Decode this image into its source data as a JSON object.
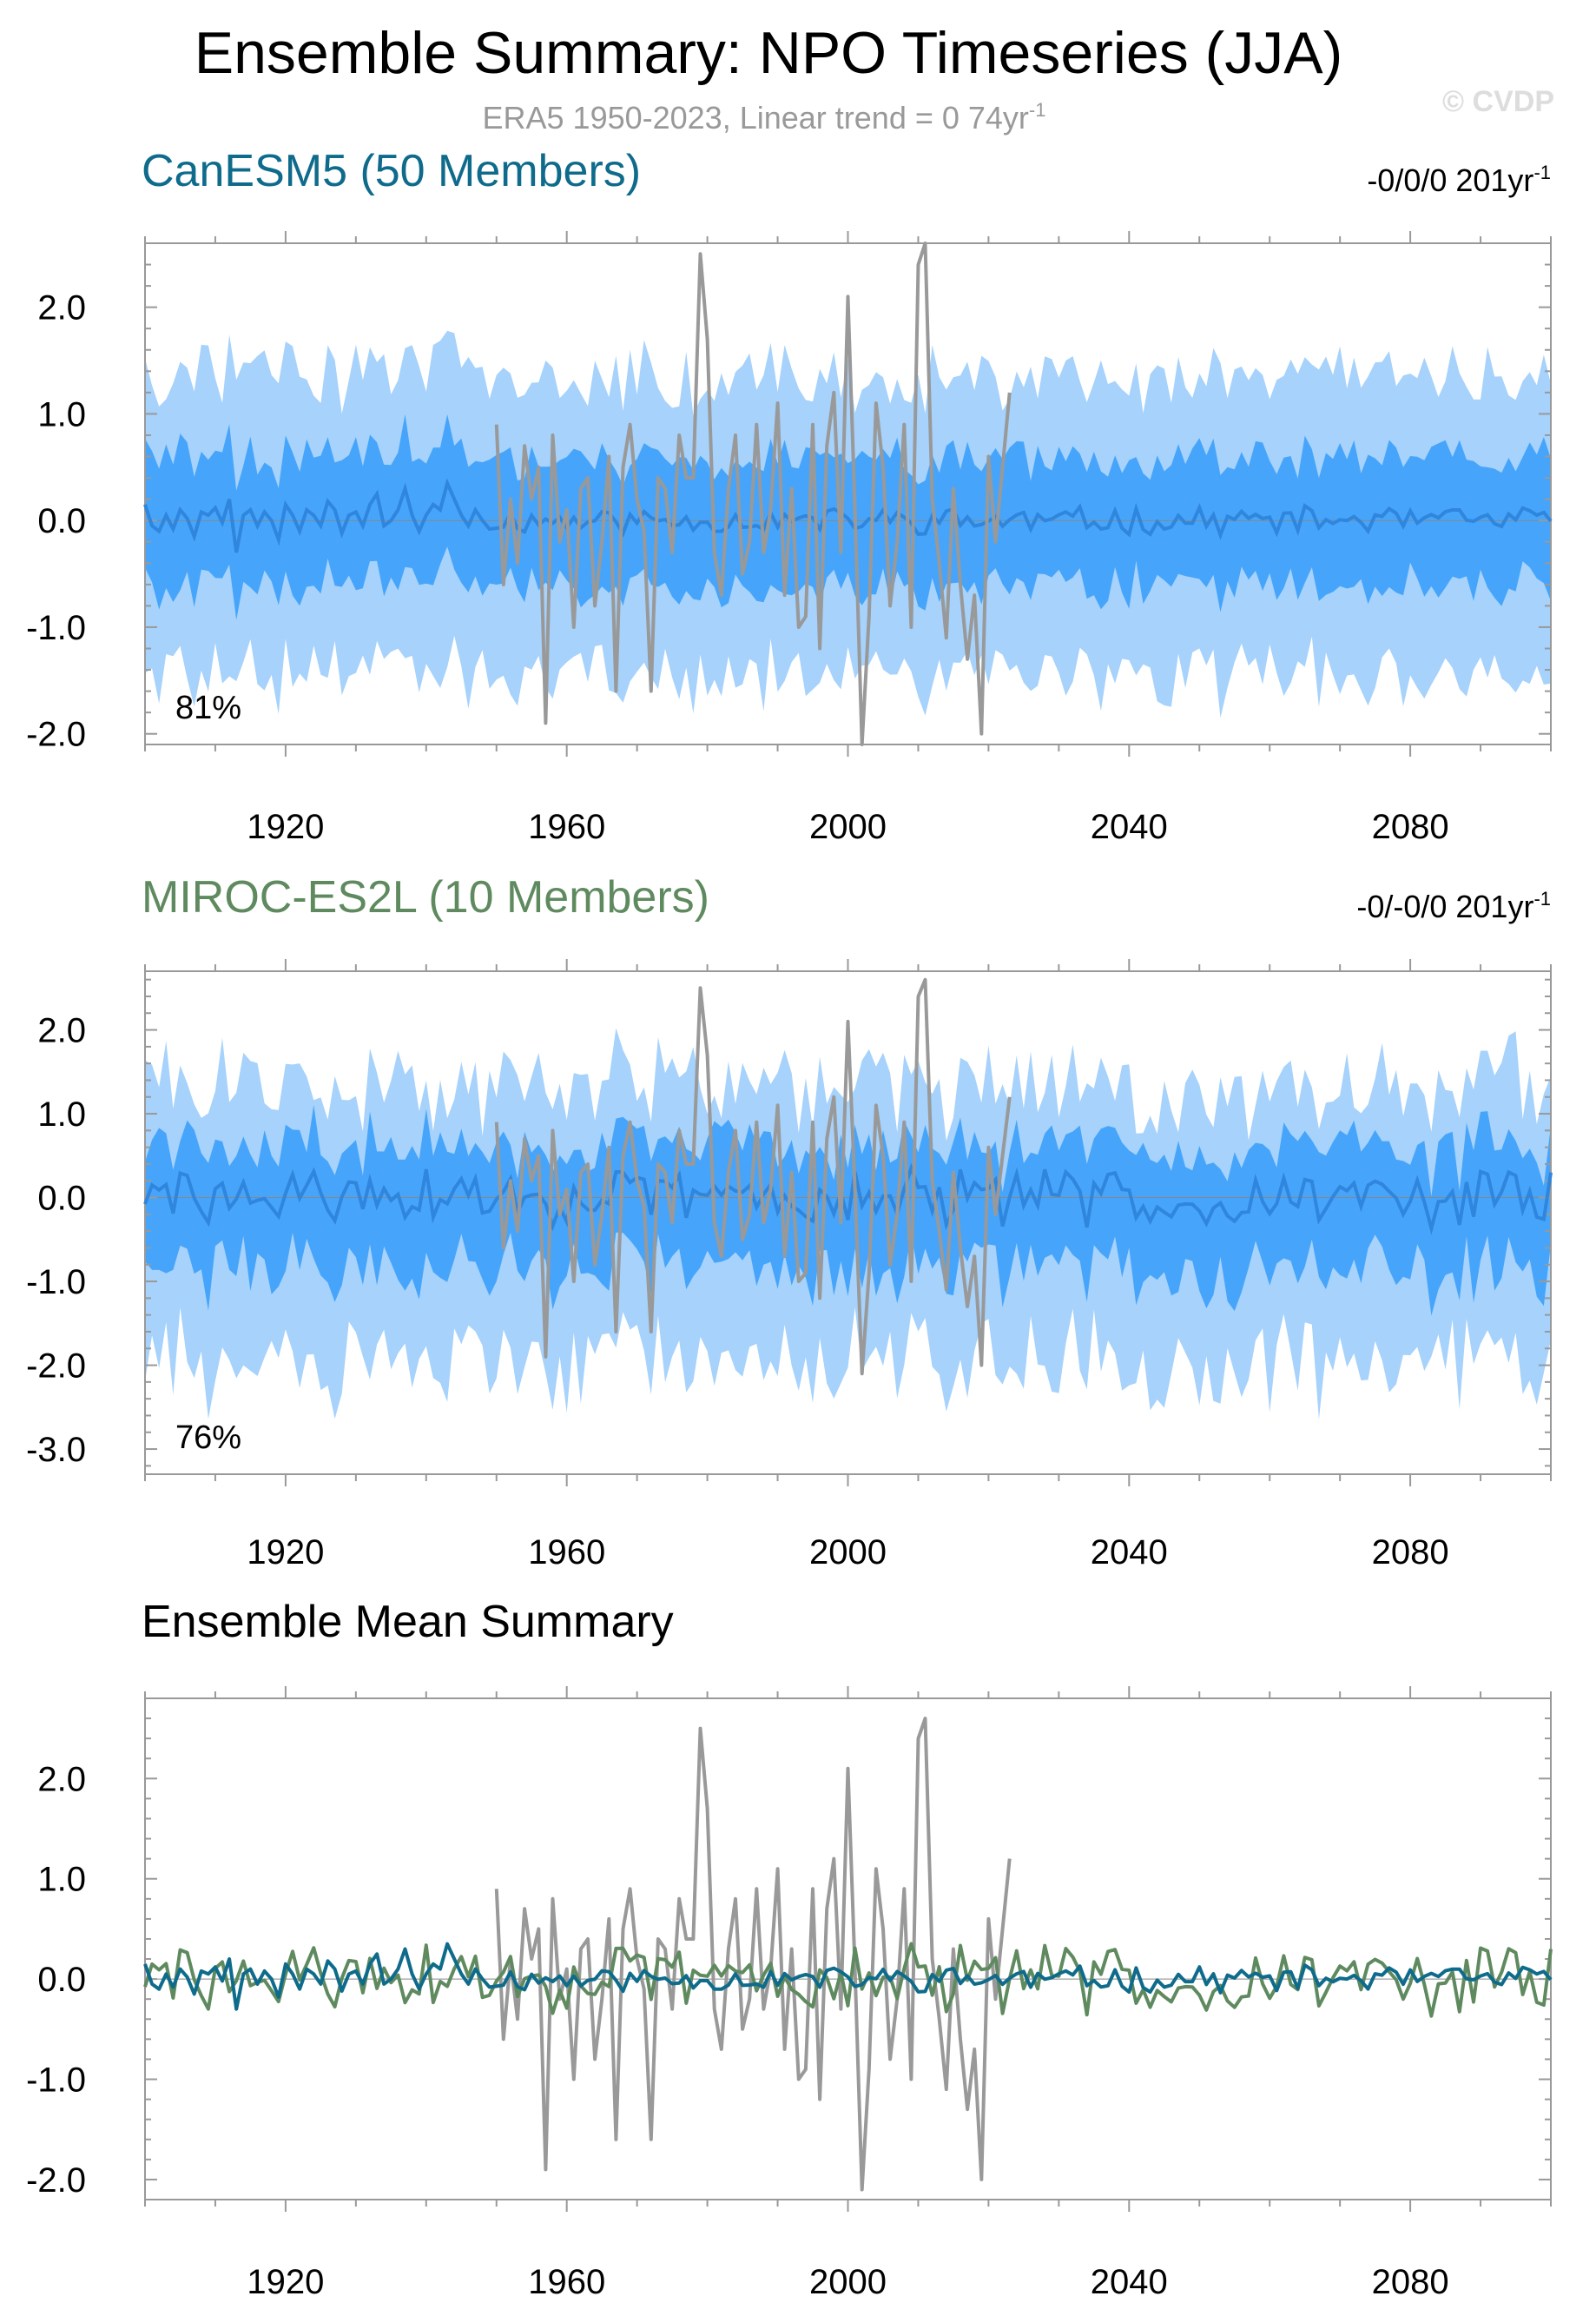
{
  "header": {
    "title": "Ensemble Summary: NPO Timeseries (JJA)",
    "subtitle_main": "ERA5 1950-2023, Linear trend = 0 74yr",
    "subtitle_sup": "-1",
    "watermark": "© CVDP"
  },
  "colors": {
    "outer_band": "#a6d2fb",
    "inner_band": "#46a5fa",
    "ens_mean_line": "#2f86dc",
    "obs": "#999999",
    "canesm5": "#0e6b8b",
    "miroc": "#5f8a5f",
    "axis": "#999999",
    "text": "#000000"
  },
  "chart_data": [
    {
      "type": "area",
      "title": "CanESM5 (50 Members)",
      "title_color": "#0e6b8b",
      "trend_label": "-0/0/0 201yr",
      "trend_sup": "-1",
      "pct_label": "81%",
      "xlim": [
        1900,
        2100
      ],
      "ylim": [
        -2.1,
        2.6
      ],
      "xticks": [
        1920,
        1960,
        2000,
        2040,
        2080
      ],
      "xtick_labels": [
        "1920",
        "1960",
        "2000",
        "2040",
        "2080"
      ],
      "yticks": [
        2.0,
        1.0,
        0.0,
        -1.0,
        -2.0
      ],
      "ytick_labels": [
        "2.0",
        "1.0",
        "0.0",
        "-1.0",
        "-2.0"
      ],
      "band_outer": [
        -1.45,
        1.35
      ],
      "band_inner": [
        -0.62,
        0.58
      ],
      "band_variability": 0.28,
      "mean_amplitude": 0.11,
      "seed": 11,
      "series": [
        {
          "name": "Ensemble mean",
          "role": "mean"
        },
        {
          "name": "ERA5",
          "role": "obs"
        }
      ]
    },
    {
      "type": "area",
      "title": "MIROC-ES2L (10 Members)",
      "title_color": "#5f8a5f",
      "trend_label": "-0/-0/0 201yr",
      "trend_sup": "-1",
      "pct_label": "76%",
      "xlim": [
        1900,
        2100
      ],
      "ylim": [
        -3.3,
        2.7
      ],
      "xticks": [
        1920,
        1960,
        2000,
        2040,
        2080
      ],
      "xtick_labels": [
        "1920",
        "1960",
        "2000",
        "2040",
        "2080"
      ],
      "yticks": [
        2.0,
        1.0,
        0.0,
        -1.0,
        -2.0,
        -3.0
      ],
      "ytick_labels": [
        "2.0",
        "1.0",
        "0.0",
        "-1.0",
        "-2.0",
        "-3.0"
      ],
      "band_outer": [
        -1.95,
        1.3
      ],
      "band_inner": [
        -0.85,
        0.6
      ],
      "band_variability": 0.45,
      "mean_amplitude": 0.3,
      "seed": 29,
      "series": [
        {
          "name": "Ensemble mean",
          "role": "mean"
        },
        {
          "name": "ERA5",
          "role": "obs"
        }
      ]
    },
    {
      "type": "line",
      "title": "Ensemble Mean Summary",
      "title_color": "#000000",
      "xlim": [
        1900,
        2100
      ],
      "ylim": [
        -2.2,
        2.8
      ],
      "xticks": [
        1920,
        1960,
        2000,
        2040,
        2080
      ],
      "xtick_labels": [
        "1920",
        "1960",
        "2000",
        "2040",
        "2080"
      ],
      "yticks": [
        2.0,
        1.0,
        0.0,
        -1.0,
        -2.0
      ],
      "ytick_labels": [
        "2.0",
        "1.0",
        "0.0",
        "-1.0",
        "-2.0"
      ],
      "series": [
        {
          "name": "ERA5",
          "role": "obs"
        },
        {
          "name": "CanESM5",
          "role": "mean_of_panel",
          "panel": 0
        },
        {
          "name": "MIROC-ES2L",
          "role": "mean_of_panel",
          "panel": 1
        }
      ]
    }
  ],
  "obs_series": {
    "name": "ERA5",
    "years": [
      1950,
      1951,
      1952,
      1953,
      1954,
      1955,
      1956,
      1957,
      1958,
      1959,
      1960,
      1961,
      1962,
      1963,
      1964,
      1965,
      1966,
      1967,
      1968,
      1969,
      1970,
      1971,
      1972,
      1973,
      1974,
      1975,
      1976,
      1977,
      1978,
      1979,
      1980,
      1981,
      1982,
      1983,
      1984,
      1985,
      1986,
      1987,
      1988,
      1989,
      1990,
      1991,
      1992,
      1993,
      1994,
      1995,
      1996,
      1997,
      1998,
      1999,
      2000,
      2001,
      2002,
      2003,
      2004,
      2005,
      2006,
      2007,
      2008,
      2009,
      2010,
      2011,
      2012,
      2013,
      2014,
      2015,
      2016,
      2017,
      2018,
      2019,
      2020,
      2021,
      2022,
      2023
    ],
    "values": [
      0.9,
      -0.6,
      0.2,
      -0.4,
      0.7,
      0.2,
      0.5,
      -1.9,
      0.8,
      -0.2,
      0.1,
      -1.0,
      0.3,
      0.4,
      -0.8,
      -0.2,
      0.6,
      -1.6,
      0.5,
      0.9,
      0.2,
      -0.1,
      -1.6,
      0.4,
      0.3,
      -0.3,
      0.8,
      0.4,
      0.4,
      2.5,
      1.7,
      -0.3,
      -0.7,
      0.3,
      0.8,
      -0.5,
      -0.2,
      0.9,
      -0.3,
      0.1,
      1.1,
      -0.7,
      0.3,
      -1.0,
      -0.9,
      0.9,
      -1.2,
      0.7,
      1.2,
      -0.3,
      2.1,
      0.1,
      -2.1,
      -0.9,
      1.1,
      0.5,
      -0.8,
      -0.2,
      0.9,
      -1.0,
      2.4,
      2.6,
      0.2,
      -0.4,
      -1.1,
      0.3,
      -0.6,
      -1.3,
      -0.7,
      -2.0,
      0.6,
      -0.2,
      0.5,
      1.2
    ]
  },
  "ens_mean_dataset": {
    "name": "CanESM5",
    "years": [
      1900,
      1901,
      1902,
      1903,
      1904,
      1905,
      1906,
      1907,
      1908,
      1909,
      1910,
      1911,
      1912,
      1913,
      1914,
      1915,
      1916,
      1917,
      1918,
      1919,
      1920,
      1921,
      1922,
      1923,
      1924,
      1925,
      1926,
      1927,
      1928,
      1929,
      1930,
      1931,
      1932,
      1933,
      1934,
      1935,
      1936,
      1937,
      1938,
      1939,
      1940,
      1941,
      1942,
      1943,
      1944,
      1945,
      1946,
      1947,
      1948,
      1949
    ],
    "values": [
      0.15,
      -0.05,
      -0.1,
      0.05,
      -0.08,
      0.1,
      0.02,
      -0.15,
      0.08,
      0.05,
      0.12,
      -0.02,
      0.2,
      -0.3,
      0.05,
      0.1,
      -0.05,
      0.08,
      0.0,
      -0.18,
      0.15,
      0.05,
      -0.1,
      0.1,
      0.05,
      -0.05,
      0.18,
      0.1,
      -0.12,
      0.05,
      0.08,
      -0.05,
      0.15,
      0.25,
      -0.05,
      0.0,
      0.1,
      0.3,
      0.05,
      -0.1,
      0.05,
      0.15,
      0.1,
      0.35,
      0.2,
      0.05,
      -0.05,
      0.1,
      0.0,
      -0.08
    ]
  }
}
